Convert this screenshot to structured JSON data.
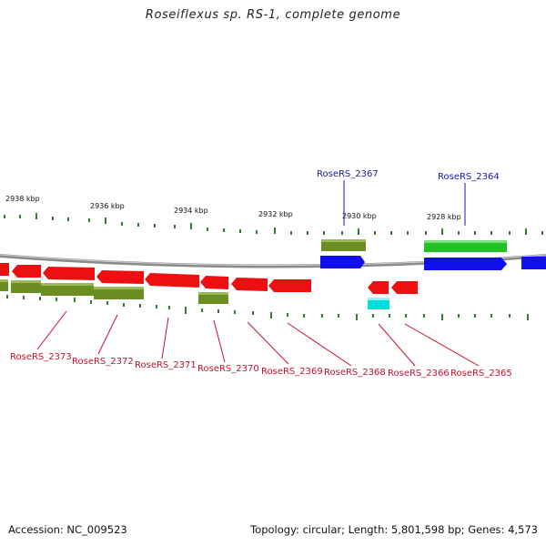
{
  "title": "Roseiflexus sp. RS-1, complete genome",
  "footer": {
    "accession": "Accession: NC_009523",
    "summary": "Topology: circular; Length: 5,801,598 bp; Genes: 4,573"
  },
  "colors": {
    "backbone": "#8a8a8a",
    "forward_cds": "#1010ee",
    "forward_rna": "#22c022",
    "reverse_cds": "#ee1010",
    "reverse_rna": "#00dddd",
    "pseudo_olive": "#6b8e23",
    "label_red": "#c8102e",
    "label_blue": "#1a1aa6",
    "tick": "#2e7d2e"
  },
  "scale": {
    "labels": [
      "2938 kbp",
      "2936 kbp",
      "2934 kbp",
      "2932 kbp",
      "2930 kbp",
      "2928 kbp"
    ]
  },
  "genes": {
    "forward": [
      "RoseRS_2367",
      "RoseRS_2364"
    ],
    "reverse": [
      "RoseRS_2373",
      "RoseRS_2372",
      "RoseRS_2371",
      "RoseRS_2370",
      "RoseRS_2369",
      "RoseRS_2368",
      "RoseRS_2366",
      "RoseRS_2365"
    ]
  }
}
